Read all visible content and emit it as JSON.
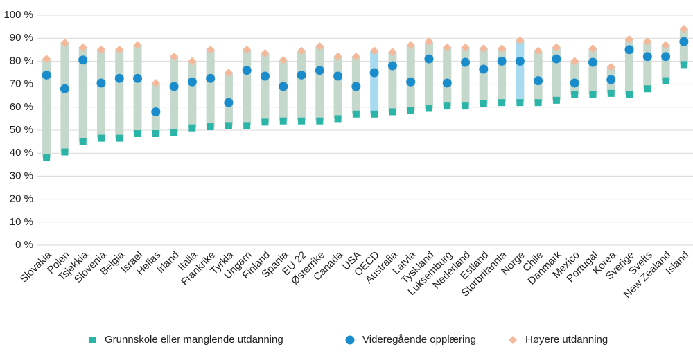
{
  "chart_data": {
    "type": "range-dot",
    "categories": [
      "Slovakia",
      "Polen",
      "Tsjekkia",
      "Slovenia",
      "Belgia",
      "Israel",
      "Hellas",
      "Irland",
      "Italia",
      "Frankrike",
      "Tyrkia",
      "Ungarn",
      "Finland",
      "Spania",
      "EU 22",
      "Østerrike",
      "Canada",
      "USA",
      "OECD",
      "Australia",
      "Latvia",
      "Tyskland",
      "Luksemburg",
      "Nederland",
      "Estland",
      "Storbritannia",
      "Norge",
      "Chile",
      "Danmark",
      "Mexico",
      "Portugal",
      "Korea",
      "Sverige",
      "Sveits",
      "New Zealand",
      "Island"
    ],
    "series": [
      {
        "name": "Grunnskole eller manglende utdanning",
        "color": "#2bb5a8",
        "marker": "square",
        "values": [
          38,
          40.5,
          45,
          46.5,
          46.5,
          48.5,
          48.5,
          49,
          51,
          51.5,
          52,
          52,
          53.5,
          54,
          54,
          54,
          55,
          57,
          57,
          58,
          58.5,
          59.5,
          60.5,
          60.5,
          61.5,
          62,
          62,
          62,
          63,
          65.5,
          65.5,
          66,
          65.5,
          68,
          71.5,
          78.5
        ]
      },
      {
        "name": "Videregående opplæring",
        "color": "#1a8ccc",
        "marker": "circle",
        "values": [
          74,
          68,
          80.5,
          70.5,
          72.5,
          72.5,
          58,
          69,
          71,
          72.5,
          62,
          76,
          73.5,
          69,
          74,
          76,
          73.5,
          69,
          75,
          78,
          71,
          81,
          70.5,
          79.5,
          76.5,
          80,
          80,
          71.5,
          81,
          70.5,
          79.5,
          72,
          85,
          82,
          82,
          88.5
        ]
      },
      {
        "name": "Høyere utdanning",
        "color": "#f4b99a",
        "marker": "diamond",
        "values": [
          81,
          88,
          86,
          85,
          85,
          87,
          70.5,
          82,
          80,
          85,
          75,
          85,
          83.5,
          80.5,
          84.5,
          86.5,
          82,
          82,
          84.5,
          84,
          87,
          88.5,
          86,
          86,
          85.5,
          85.5,
          89,
          84.5,
          86,
          80,
          85.5,
          77.5,
          89.5,
          88.5,
          87,
          94
        ]
      }
    ],
    "range_color": "#c4d8cc",
    "highlight_categories": [
      18,
      26
    ],
    "highlight_color": "#a8daf0",
    "highlight_label_color": "#1a9bd7",
    "ylim": [
      0,
      100
    ],
    "yticks": [
      {
        "value": 0,
        "label": "0 %"
      },
      {
        "value": 10,
        "label": "10 %"
      },
      {
        "value": 20,
        "label": "20 %"
      },
      {
        "value": 30,
        "label": "30 %"
      },
      {
        "value": 40,
        "label": "40 %"
      },
      {
        "value": 50,
        "label": "50 %"
      },
      {
        "value": 60,
        "label": "60 %"
      },
      {
        "value": 70,
        "label": "70 %"
      },
      {
        "value": 80,
        "label": "80 %"
      },
      {
        "value": 90,
        "label": "90 %"
      },
      {
        "value": 100,
        "label": "100 %"
      }
    ],
    "grid": true,
    "legend": "bottom"
  }
}
